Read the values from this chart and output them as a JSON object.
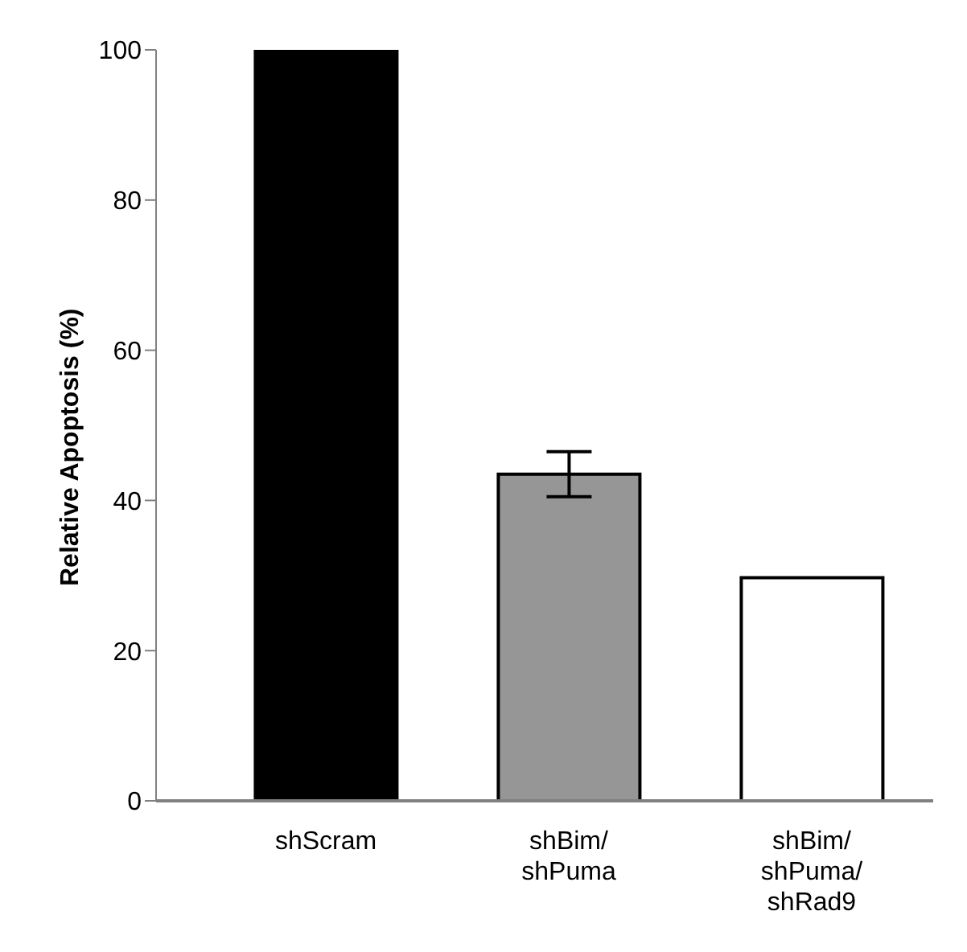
{
  "chart_data": {
    "type": "bar",
    "ylabel": "Relative Apoptosis (%)",
    "categories": [
      "shScram",
      "shBim/shPuma",
      "shBim/shPuma/shRad9"
    ],
    "values": [
      100,
      43.5,
      29.7
    ],
    "colors": [
      "#000000",
      "#969696",
      "#ffffff"
    ],
    "errors": [
      null,
      3,
      null
    ],
    "ylim": [
      0,
      100
    ],
    "yticks": [
      0,
      20,
      40,
      60,
      80,
      100
    ],
    "grid": false
  }
}
